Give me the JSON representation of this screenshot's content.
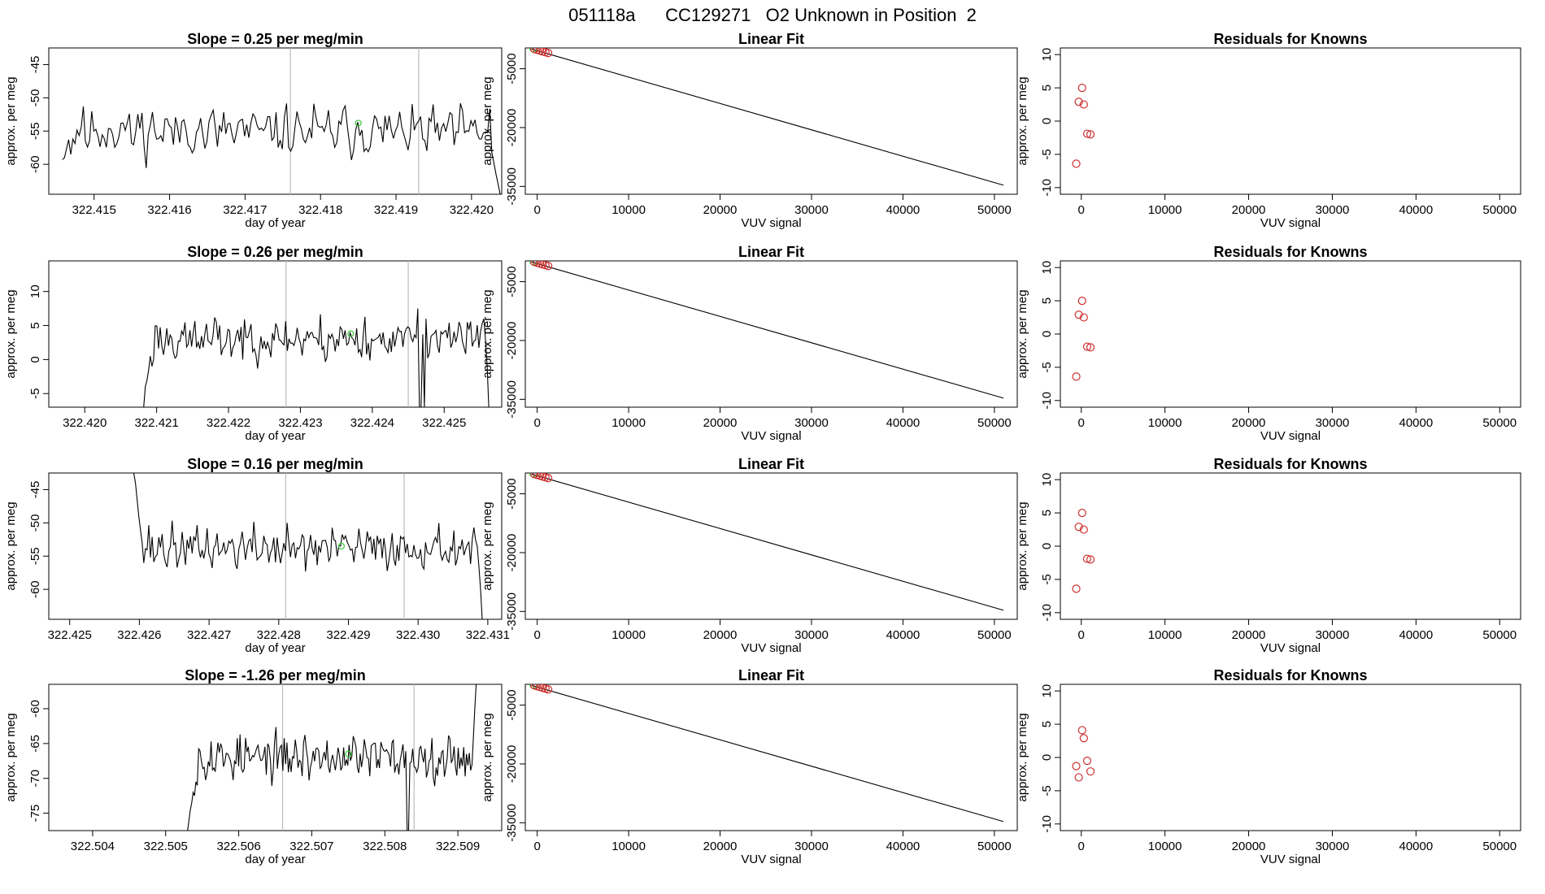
{
  "main_title": "051118a      CC129271   O2 Unknown in Position  2",
  "colors": {
    "known": "#cd2f2f",
    "green": "#3aca3a",
    "line": "#000000",
    "vline": "#bbbbbb"
  },
  "chart_data": [
    {
      "type": "line",
      "role": "timeseries",
      "title": "Slope =  0.25  per meg/min",
      "xlabel": "day of year",
      "ylabel": "approx. per meg",
      "xlim": [
        322.4144,
        322.4204
      ],
      "ylim": [
        -64.5,
        -42.5
      ],
      "xticks": [
        322.415,
        322.416,
        322.417,
        322.418,
        322.419,
        322.42
      ],
      "xtick_labels": [
        "322.415",
        "322.416",
        "322.417",
        "322.418",
        "322.419",
        "322.420"
      ],
      "yticks": [
        -60,
        -55,
        -50,
        -45
      ],
      "ytick_labels": [
        "-60",
        "-55",
        "-50",
        "-45"
      ],
      "x_start": 322.41458,
      "x_end": 322.42038,
      "level": -55.0,
      "noise": 2.3,
      "start_values": [
        -59.3,
        -59.0,
        -57.6,
        -56.3,
        -58.5,
        -56.2
      ],
      "end_values": [
        -58.2,
        -59.8,
        -61.5,
        -63.0,
        -64.5
      ],
      "vlines": [
        322.4176,
        322.4193
      ],
      "marker": {
        "x": 322.4185,
        "y": -53.8
      },
      "seed": 11
    },
    {
      "type": "line",
      "role": "fit",
      "title": "Linear Fit",
      "xlabel": "VUV signal",
      "ylabel": "approx. per meg",
      "xlim": [
        -1300,
        52500
      ],
      "ylim": [
        -37000,
        300
      ],
      "xticks": [
        0,
        10000,
        20000,
        30000,
        40000,
        50000
      ],
      "xtick_labels": [
        "0",
        "10000",
        "20000",
        "30000",
        "40000",
        "50000"
      ],
      "yticks": [
        -35000,
        -20000,
        -5000
      ],
      "ytick_labels": [
        "-35000",
        "-20000",
        "-5000"
      ],
      "fit_line": {
        "x0": -600,
        "y0": 0,
        "x1": 51000,
        "y1": -34700
      },
      "knowns": [
        {
          "x": -300,
          "y": 0
        },
        {
          "x": 0,
          "y": -200
        },
        {
          "x": 300,
          "y": -400
        },
        {
          "x": 600,
          "y": -600
        },
        {
          "x": 900,
          "y": -800
        },
        {
          "x": 1200,
          "y": -1000
        }
      ],
      "green_point": {
        "x": -400,
        "y": 200
      }
    },
    {
      "type": "scatter",
      "role": "residuals",
      "title": "Residuals for Knowns",
      "xlabel": "VUV signal",
      "ylabel": "approx. per meg",
      "xlim": [
        -2500,
        52500
      ],
      "ylim": [
        -11,
        11
      ],
      "xticks": [
        0,
        10000,
        20000,
        30000,
        40000,
        50000
      ],
      "xtick_labels": [
        "0",
        "10000",
        "20000",
        "30000",
        "40000",
        "50000"
      ],
      "yticks": [
        -10,
        -5,
        0,
        5,
        10
      ],
      "ytick_labels": [
        "-10",
        "-5",
        "0",
        "5",
        "10"
      ],
      "points": [
        {
          "x": -600,
          "y": -6.4
        },
        {
          "x": -300,
          "y": 2.9
        },
        {
          "x": 100,
          "y": 5.0
        },
        {
          "x": 300,
          "y": 2.5
        },
        {
          "x": 700,
          "y": -1.9
        },
        {
          "x": 1100,
          "y": -2.0
        }
      ]
    },
    {
      "type": "line",
      "role": "timeseries",
      "title": "Slope =  0.26  per meg/min",
      "xlabel": "day of year",
      "ylabel": "approx. per meg",
      "xlim": [
        322.4195,
        322.4258
      ],
      "ylim": [
        -7,
        14.5
      ],
      "xticks": [
        322.42,
        322.421,
        322.422,
        322.423,
        322.424,
        322.425
      ],
      "xtick_labels": [
        "322.420",
        "322.421",
        "322.422",
        "322.423",
        "322.424",
        "322.425"
      ],
      "yticks": [
        -5,
        0,
        5,
        10
      ],
      "ytick_labels": [
        "-5",
        "0",
        "5",
        "10"
      ],
      "x_start": 322.42082,
      "x_end": 322.42562,
      "level": 3.0,
      "noise": 2.0,
      "start_values": [
        -7.0,
        -4.0,
        -3.0,
        -1.5,
        0.5,
        -1.0
      ],
      "end_values": [
        6.0,
        3.0,
        -1.0,
        -7.0
      ],
      "vlines": [
        322.4228,
        322.4245
      ],
      "marker": {
        "x": 322.4237,
        "y": 3.8
      },
      "seed": 23
    },
    {
      "type": "line",
      "role": "fit",
      "title": "Linear Fit",
      "xlabel": "VUV signal",
      "ylabel": "approx. per meg",
      "xlim": [
        -1300,
        52500
      ],
      "ylim": [
        -37000,
        300
      ],
      "xticks": [
        0,
        10000,
        20000,
        30000,
        40000,
        50000
      ],
      "xtick_labels": [
        "0",
        "10000",
        "20000",
        "30000",
        "40000",
        "50000"
      ],
      "yticks": [
        -35000,
        -20000,
        -5000
      ],
      "ytick_labels": [
        "-35000",
        "-20000",
        "-5000"
      ],
      "fit_line": {
        "x0": -600,
        "y0": 0,
        "x1": 51000,
        "y1": -34700
      },
      "knowns": [
        {
          "x": -300,
          "y": 0
        },
        {
          "x": 0,
          "y": -200
        },
        {
          "x": 300,
          "y": -400
        },
        {
          "x": 600,
          "y": -600
        },
        {
          "x": 900,
          "y": -800
        },
        {
          "x": 1200,
          "y": -1000
        }
      ],
      "green_point": {
        "x": -400,
        "y": 200
      }
    },
    {
      "type": "scatter",
      "role": "residuals",
      "title": "Residuals for Knowns",
      "xlabel": "VUV signal",
      "ylabel": "approx. per meg",
      "xlim": [
        -2500,
        52500
      ],
      "ylim": [
        -11,
        11
      ],
      "xticks": [
        0,
        10000,
        20000,
        30000,
        40000,
        50000
      ],
      "xtick_labels": [
        "0",
        "10000",
        "20000",
        "30000",
        "40000",
        "50000"
      ],
      "yticks": [
        -10,
        -5,
        0,
        5,
        10
      ],
      "ytick_labels": [
        "-10",
        "-5",
        "0",
        "5",
        "10"
      ],
      "points": [
        {
          "x": -600,
          "y": -6.4
        },
        {
          "x": -300,
          "y": 2.9
        },
        {
          "x": 100,
          "y": 5.0
        },
        {
          "x": 300,
          "y": 2.5
        },
        {
          "x": 700,
          "y": -1.9
        },
        {
          "x": 1100,
          "y": -2.0
        }
      ]
    },
    {
      "type": "line",
      "role": "timeseries",
      "title": "Slope =  0.16  per meg/min",
      "xlabel": "day of year",
      "ylabel": "approx. per meg",
      "xlim": [
        322.4247,
        322.4312
      ],
      "ylim": [
        -64.5,
        -42.5
      ],
      "xticks": [
        322.425,
        322.426,
        322.427,
        322.428,
        322.429,
        322.43,
        322.431
      ],
      "xtick_labels": [
        "322.425",
        "322.426",
        "322.427",
        "322.428",
        "322.429",
        "322.430",
        "322.431"
      ],
      "yticks": [
        -60,
        -55,
        -50,
        -45
      ],
      "ytick_labels": [
        "-60",
        "-55",
        "-50",
        "-45"
      ],
      "x_start": 322.42592,
      "x_end": 322.43092,
      "level": -53.8,
      "noise": 2.0,
      "start_values": [
        -42.5,
        -44.0,
        -46.5,
        -49.0,
        -51.0,
        -53.0
      ],
      "end_values": [
        -53.5,
        -56.5,
        -60.0,
        -64.5
      ],
      "vlines": [
        322.4281,
        322.4298
      ],
      "marker": {
        "x": 322.4289,
        "y": -53.5
      },
      "seed": 37
    },
    {
      "type": "line",
      "role": "fit",
      "title": "Linear Fit",
      "xlabel": "VUV signal",
      "ylabel": "approx. per meg",
      "xlim": [
        -1300,
        52500
      ],
      "ylim": [
        -37000,
        300
      ],
      "xticks": [
        0,
        10000,
        20000,
        30000,
        40000,
        50000
      ],
      "xtick_labels": [
        "0",
        "10000",
        "20000",
        "30000",
        "40000",
        "50000"
      ],
      "yticks": [
        -35000,
        -20000,
        -5000
      ],
      "ytick_labels": [
        "-35000",
        "-20000",
        "-5000"
      ],
      "fit_line": {
        "x0": -600,
        "y0": 0,
        "x1": 51000,
        "y1": -34700
      },
      "knowns": [
        {
          "x": -300,
          "y": 0
        },
        {
          "x": 0,
          "y": -200
        },
        {
          "x": 300,
          "y": -400
        },
        {
          "x": 600,
          "y": -600
        },
        {
          "x": 900,
          "y": -800
        },
        {
          "x": 1200,
          "y": -1000
        }
      ],
      "green_point": {
        "x": -400,
        "y": 200
      }
    },
    {
      "type": "scatter",
      "role": "residuals",
      "title": "Residuals for Knowns",
      "xlabel": "VUV signal",
      "ylabel": "approx. per meg",
      "xlim": [
        -2500,
        52500
      ],
      "ylim": [
        -11,
        11
      ],
      "xticks": [
        0,
        10000,
        20000,
        30000,
        40000,
        50000
      ],
      "xtick_labels": [
        "0",
        "10000",
        "20000",
        "30000",
        "40000",
        "50000"
      ],
      "yticks": [
        -10,
        -5,
        0,
        5,
        10
      ],
      "ytick_labels": [
        "-10",
        "-5",
        "0",
        "5",
        "10"
      ],
      "points": [
        {
          "x": -600,
          "y": -6.4
        },
        {
          "x": -300,
          "y": 2.9
        },
        {
          "x": 100,
          "y": 5.0
        },
        {
          "x": 300,
          "y": 2.5
        },
        {
          "x": 700,
          "y": -1.9
        },
        {
          "x": 1100,
          "y": -2.0
        }
      ]
    },
    {
      "type": "line",
      "role": "timeseries",
      "title": "Slope =  -1.26  per meg/min",
      "xlabel": "day of year",
      "ylabel": "approx. per meg",
      "xlim": [
        322.5034,
        322.5096
      ],
      "ylim": [
        -77.5,
        -56.5
      ],
      "xticks": [
        322.504,
        322.505,
        322.506,
        322.507,
        322.508,
        322.509
      ],
      "xtick_labels": [
        "322.504",
        "322.505",
        "322.506",
        "322.507",
        "322.508",
        "322.509"
      ],
      "yticks": [
        -75,
        -70,
        -65,
        -60
      ],
      "ytick_labels": [
        "-75",
        "-70",
        "-65",
        "-60"
      ],
      "x_start": 322.5053,
      "x_end": 322.50925,
      "level": -67.0,
      "noise": 2.0,
      "start_values": [
        -77.5,
        -76.0,
        -74.5,
        -73.5,
        -72.0,
        -72.5,
        -70.5,
        -71.0
      ],
      "end_values": [
        -68.0,
        -64.0,
        -60.0,
        -56.5
      ],
      "dip": {
        "x": 322.5083,
        "y": -77.5
      },
      "vlines": [
        322.5066,
        322.5084
      ],
      "marker": {
        "x": 322.5075,
        "y": -66.5
      },
      "seed": 53
    },
    {
      "type": "line",
      "role": "fit",
      "title": "Linear Fit",
      "xlabel": "VUV signal",
      "ylabel": "approx. per meg",
      "xlim": [
        -1300,
        52500
      ],
      "ylim": [
        -37000,
        300
      ],
      "xticks": [
        0,
        10000,
        20000,
        30000,
        40000,
        50000
      ],
      "xtick_labels": [
        "0",
        "10000",
        "20000",
        "30000",
        "40000",
        "50000"
      ],
      "yticks": [
        -35000,
        -20000,
        -5000
      ],
      "ytick_labels": [
        "-35000",
        "-20000",
        "-5000"
      ],
      "fit_line": {
        "x0": -600,
        "y0": 0,
        "x1": 51000,
        "y1": -34700
      },
      "knowns": [
        {
          "x": -300,
          "y": 0
        },
        {
          "x": 0,
          "y": -200
        },
        {
          "x": 300,
          "y": -400
        },
        {
          "x": 600,
          "y": -600
        },
        {
          "x": 900,
          "y": -800
        },
        {
          "x": 1200,
          "y": -1000
        }
      ],
      "green_point": {
        "x": -400,
        "y": 200
      }
    },
    {
      "type": "scatter",
      "role": "residuals",
      "title": "Residuals for Knowns",
      "xlabel": "VUV signal",
      "ylabel": "approx. per meg",
      "xlim": [
        -2500,
        52500
      ],
      "ylim": [
        -11,
        11
      ],
      "xticks": [
        0,
        10000,
        20000,
        30000,
        40000,
        50000
      ],
      "xtick_labels": [
        "0",
        "10000",
        "20000",
        "30000",
        "40000",
        "50000"
      ],
      "yticks": [
        -10,
        -5,
        0,
        5,
        10
      ],
      "ytick_labels": [
        "-10",
        "-5",
        "0",
        "5",
        "10"
      ],
      "points": [
        {
          "x": -600,
          "y": -1.3
        },
        {
          "x": -300,
          "y": -3.0
        },
        {
          "x": 100,
          "y": 4.1
        },
        {
          "x": 300,
          "y": 2.9
        },
        {
          "x": 700,
          "y": -0.5
        },
        {
          "x": 1100,
          "y": -2.1
        }
      ]
    }
  ]
}
